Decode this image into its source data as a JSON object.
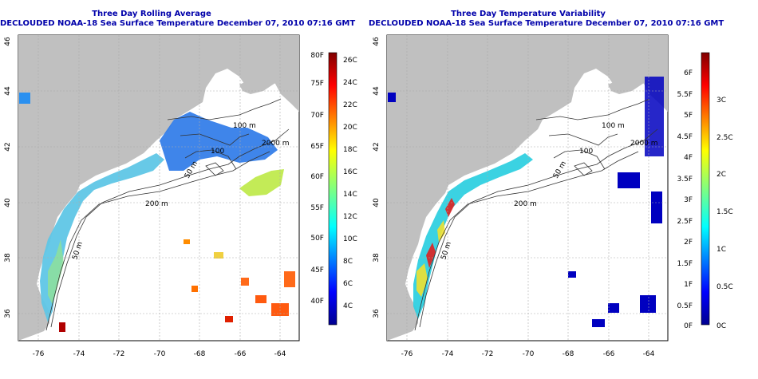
{
  "panels": [
    {
      "title_line1": "Three Day Rolling Average",
      "title_line2": "DECLOUDED NOAA-18 Sea Surface Temperature December 07, 2010 07:16 GMT",
      "x_ticks": [
        "-76",
        "-74",
        "-72",
        "-70",
        "-68",
        "-66",
        "-64"
      ],
      "y_ticks": [
        "36",
        "38",
        "40",
        "42",
        "44",
        "46"
      ],
      "contour_labels": [
        "100 m",
        "2000 m",
        "100",
        "50 m",
        "200 m",
        "50 m"
      ],
      "colorbar": {
        "left_labels": [
          "80F",
          "75F",
          "70F",
          "65F",
          "60F",
          "55F",
          "50F",
          "45F",
          "40F"
        ],
        "right_labels": [
          "26C",
          "24C",
          "22C",
          "20C",
          "18C",
          "16C",
          "14C",
          "12C",
          "10C",
          "8C",
          "6C",
          "4C"
        ]
      }
    },
    {
      "title_line1": "Three Day Temperature Variability",
      "title_line2": "DECLOUDED NOAA-18 Sea Surface Temperature December 07, 2010 07:16 GMT",
      "x_ticks": [
        "-76",
        "-74",
        "-72",
        "-70",
        "-68",
        "-66",
        "-64"
      ],
      "y_ticks": [
        "36",
        "38",
        "40",
        "42",
        "44",
        "46"
      ],
      "contour_labels": [
        "100 m",
        "2000 m",
        "100",
        "50 m",
        "200 m",
        "50 m"
      ],
      "colorbar": {
        "left_labels": [
          "6F",
          "5.5F",
          "5F",
          "4.5F",
          "4F",
          "3.5F",
          "3F",
          "2.5F",
          "2F",
          "1.5F",
          "1F",
          "0.5F",
          "0F"
        ],
        "right_labels": [
          "3C",
          "2.5C",
          "2C",
          "1.5C",
          "1C",
          "0.5C",
          "0C"
        ]
      }
    }
  ],
  "colors": {
    "land": "#c0c0c0",
    "title": "#0000aa",
    "jet": [
      "#00008f",
      "#0000ff",
      "#0080ff",
      "#00ffff",
      "#80ff80",
      "#ffff00",
      "#ff8000",
      "#ff0000",
      "#800000"
    ]
  }
}
